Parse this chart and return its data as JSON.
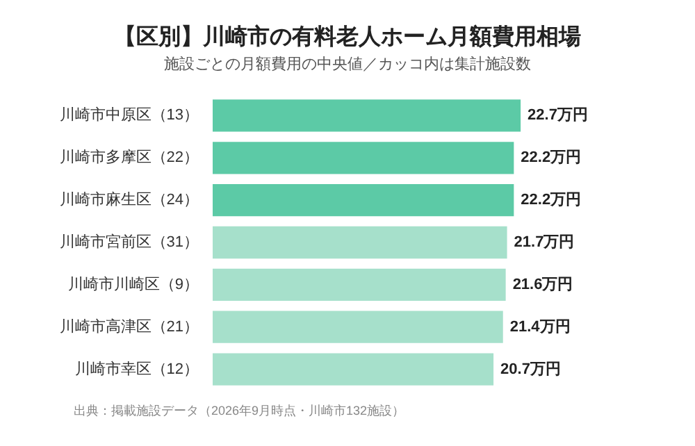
{
  "chart_data": {
    "type": "bar",
    "orientation": "horizontal",
    "title": "【区別】川崎市の有料老人ホーム月額費用相場",
    "subtitle": "施設ごとの月額費用の中央値／カッコ内は集計施設数",
    "categories": [
      "川崎市中原区（13）",
      "川崎市多摩区（22）",
      "川崎市麻生区（24）",
      "川崎市宮前区（31）",
      "川崎市川崎区（9）",
      "川崎市高津区（21）",
      "川崎市幸区（12）"
    ],
    "values": [
      22.7,
      22.2,
      22.2,
      21.7,
      21.6,
      21.4,
      20.7
    ],
    "value_labels": [
      "22.7万円",
      "22.2万円",
      "22.2万円",
      "21.7万円",
      "21.6万円",
      "21.4万円",
      "20.7万円"
    ],
    "colors": [
      "#5ccaa6",
      "#5ccaa6",
      "#5ccaa6",
      "#a6e0cb",
      "#a6e0cb",
      "#a6e0cb",
      "#a6e0cb"
    ],
    "annotations": [
      "出典：掲載施設データ（2026年9月時点・川崎市132施設）"
    ]
  }
}
